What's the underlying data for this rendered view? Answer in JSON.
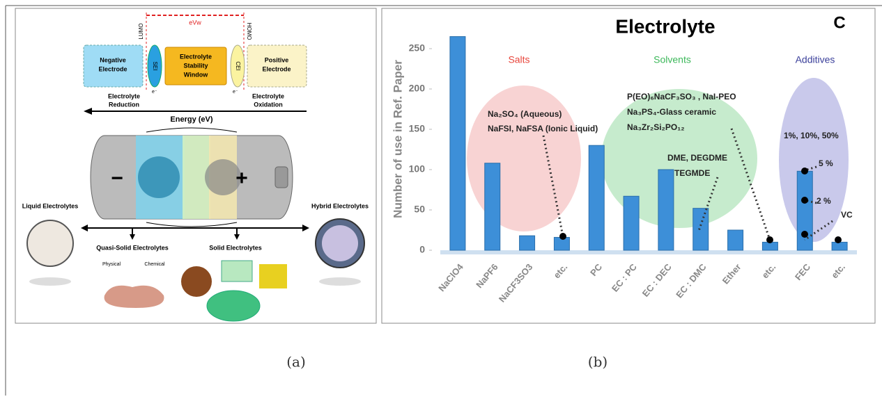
{
  "panel_a": {
    "lumo": "LUMO",
    "homo": "HOMO",
    "window_label": "eVw",
    "negative_electrode": [
      "Negative",
      "Electrode"
    ],
    "sei": "SEI",
    "stability_window": [
      "Electrolyte",
      "Stability",
      "Window"
    ],
    "cei": "CEI",
    "positive_electrode": [
      "Positive",
      "Electrode"
    ],
    "electron_left": "e⁻",
    "electron_right": "e⁻",
    "reduction": [
      "Electrolyte",
      "Reduction"
    ],
    "oxidation": [
      "Electrolyte",
      "Oxidation"
    ],
    "energy": "Energy (eV)",
    "minus": "−",
    "plus": "+",
    "liquid": "Liquid Electrolytes",
    "hybrid": "Hybrid Electrolytes",
    "quasi_solid": "Quasi-Solid Electrolytes",
    "solid": "Solid Electrolytes",
    "physical": "Physical",
    "chemical": "Chemical"
  },
  "captions": [
    "(a)",
    "(b)"
  ],
  "chart_data": {
    "type": "bar",
    "title": "Electrolyte",
    "panel_label": "C",
    "y_label": "Number of use in Ref. Paper",
    "categories": [
      "NaClO4",
      "NaPF6",
      "NaCF3SO3",
      "etc.",
      "PC",
      "EC : PC",
      "EC : DEC",
      "EC : DMC",
      "Ether",
      "etc.",
      "FEC",
      "etc."
    ],
    "values": [
      265,
      108,
      18,
      16,
      130,
      67,
      100,
      52,
      25,
      10,
      98,
      10
    ],
    "color": "#3d8fd8",
    "ylim": [
      0,
      275
    ],
    "yticks": [
      0,
      50,
      100,
      150,
      200,
      250
    ],
    "groups": [
      {
        "name": "Salts",
        "color": "#e8463c"
      },
      {
        "name": "Solvents",
        "color": "#3cb85a"
      },
      {
        "name": "Additives",
        "color": "#3a3f9a"
      }
    ],
    "annotations": [
      "Na₂SO₄ (Aqueous)",
      "NaFSI, NaFSA (Ionic Liquid)",
      "P(EO)₆NaCF₃SO₃ , NaI-PEO",
      "Na₃PS₄-Glass ceramic",
      "Na₃Zr₂Si₂PO₁₂",
      "DME, DEGDME",
      "TEGMDE",
      "1%, 10%, 50%",
      "5 %",
      "2 %",
      "VC"
    ]
  }
}
